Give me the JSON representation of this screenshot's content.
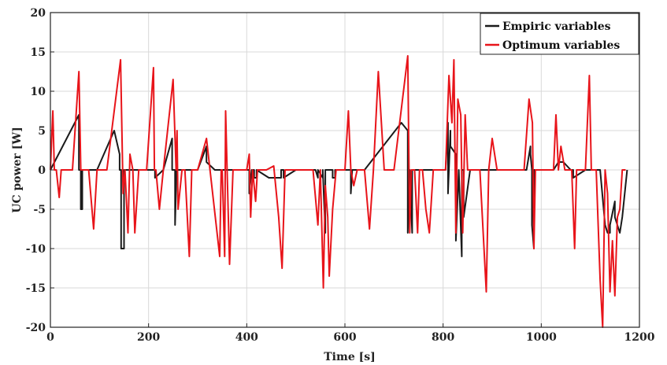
{
  "chart_data": {
    "type": "line",
    "xlabel": "Time [s]",
    "ylabel": "UC power [W]",
    "xlim": [
      0,
      1200
    ],
    "ylim": [
      -20,
      20
    ],
    "xticks": [
      0,
      200,
      400,
      600,
      800,
      1000,
      1200
    ],
    "yticks": [
      -20,
      -15,
      -10,
      -5,
      0,
      5,
      10,
      15,
      20
    ],
    "grid": true,
    "legend_position": "top-right",
    "series": [
      {
        "name": "Empiric variables",
        "color": "#1a1a1a",
        "x": [
          0,
          58,
          58,
          62,
          62,
          65,
          65,
          95,
          130,
          141,
          141,
          144,
          144,
          150,
          150,
          170,
          210,
          210,
          213,
          213,
          230,
          248,
          248,
          254,
          254,
          257,
          257,
          300,
          318,
          318,
          335,
          400,
          405,
          405,
          410,
          415,
          415,
          420,
          420,
          445,
          455,
          470,
          470,
          475,
          475,
          500,
          540,
          545,
          545,
          555,
          555,
          560,
          560,
          575,
          575,
          580,
          580,
          600,
          612,
          612,
          615,
          615,
          640,
          715,
          728,
          728,
          732,
          732,
          737,
          737,
          760,
          805,
          810,
          810,
          815,
          815,
          826,
          826,
          832,
          832,
          838,
          838,
          842,
          842,
          855,
          920,
          970,
          978,
          978,
          981,
          981,
          985,
          985,
          1025,
          1035,
          1045,
          1060,
          1065,
          1065,
          1090,
          1105,
          1120,
          1130,
          1135,
          1140,
          1140,
          1150,
          1150,
          1160,
          1165,
          1175
        ],
        "y": [
          0,
          7,
          0,
          0,
          -5,
          -5,
          0,
          0,
          5,
          2,
          0,
          0,
          -10,
          -10,
          0,
          0,
          0,
          0,
          0,
          -1,
          0,
          4,
          0,
          0,
          -7,
          0,
          0,
          0,
          3,
          1,
          0,
          0,
          0,
          -3,
          0,
          0,
          -1,
          -1,
          0,
          -1,
          -1,
          -1,
          0,
          0,
          -1,
          0,
          0,
          -1,
          0,
          -1,
          0,
          -8,
          0,
          0,
          -1,
          -1,
          0,
          0,
          0,
          -3,
          0,
          0,
          0,
          6,
          5,
          -8,
          0,
          0,
          -8,
          0,
          0,
          0,
          6,
          -3,
          5,
          3,
          2,
          -9,
          0,
          0,
          -11,
          0,
          0,
          -6,
          0,
          0,
          0,
          3,
          2,
          0,
          -7,
          -10,
          0,
          0,
          1,
          1,
          0,
          0,
          -1,
          0,
          0,
          0,
          -7,
          -8,
          -8,
          -7,
          -4,
          -6,
          -8,
          -6,
          0
        ]
      },
      {
        "name": "Optimum variables",
        "color": "#e8141a",
        "x": [
          0,
          5,
          8,
          12,
          18,
          22,
          45,
          58,
          62,
          65,
          65,
          78,
          88,
          95,
          115,
          143,
          148,
          152,
          158,
          162,
          168,
          172,
          180,
          188,
          196,
          210,
          212,
          215,
          222,
          230,
          250,
          256,
          258,
          260,
          268,
          274,
          283,
          288,
          300,
          318,
          345,
          348,
          350,
          355,
          357,
          360,
          365,
          372,
          380,
          400,
          405,
          408,
          412,
          418,
          422,
          440,
          455,
          465,
          472,
          478,
          482,
          500,
          535,
          545,
          550,
          556,
          560,
          565,
          568,
          575,
          582,
          590,
          600,
          607,
          612,
          618,
          625,
          640,
          650,
          658,
          668,
          680,
          690,
          700,
          728,
          732,
          735,
          742,
          748,
          752,
          758,
          765,
          772,
          780,
          790,
          805,
          812,
          818,
          822,
          826,
          830,
          836,
          840,
          845,
          850,
          855,
          860,
          875,
          888,
          893,
          900,
          910,
          935,
          965,
          975,
          982,
          985,
          988,
          1000,
          1025,
          1030,
          1035,
          1040,
          1048,
          1055,
          1062,
          1068,
          1072,
          1080,
          1090,
          1098,
          1102,
          1108,
          1112,
          1120,
          1125,
          1130,
          1135,
          1140,
          1145,
          1150,
          1155,
          1160,
          1165,
          1172
        ],
        "y": [
          0,
          7.5,
          0,
          0,
          -3.5,
          0,
          0,
          12.5,
          0,
          0,
          0,
          0,
          -7.5,
          0,
          0,
          14,
          -3,
          0,
          -8,
          2,
          0,
          -8,
          0,
          0,
          0,
          13,
          0,
          0,
          -5,
          0,
          11.5,
          0,
          5,
          -5,
          0,
          0,
          -11,
          0,
          0,
          4,
          -11,
          0,
          0,
          -11,
          7.5,
          0,
          -12,
          0,
          0,
          0,
          2,
          -6,
          0,
          -4,
          0,
          0,
          0.5,
          -6,
          -12.5,
          0,
          0,
          0,
          0,
          -7,
          0,
          -15,
          -2,
          -6,
          -13.5,
          -5,
          0,
          0,
          0,
          7.5,
          0,
          -2,
          0,
          0,
          -7.5,
          0,
          12.5,
          0,
          0,
          0,
          14.5,
          -8,
          0,
          0,
          -8,
          0,
          0,
          -5,
          -8,
          0,
          0,
          0,
          12,
          6,
          14,
          -8,
          9,
          7,
          -8,
          7,
          0,
          0,
          0,
          0,
          -15.5,
          0,
          4,
          0,
          0,
          0,
          9,
          6,
          -10,
          0,
          0,
          0,
          7,
          0,
          3,
          0,
          0,
          0,
          -10,
          0,
          0,
          0,
          12,
          0,
          0,
          0,
          -14,
          -20,
          0,
          -3,
          -15.5,
          -9,
          -16,
          -6,
          -5,
          0,
          0
        ]
      }
    ]
  }
}
